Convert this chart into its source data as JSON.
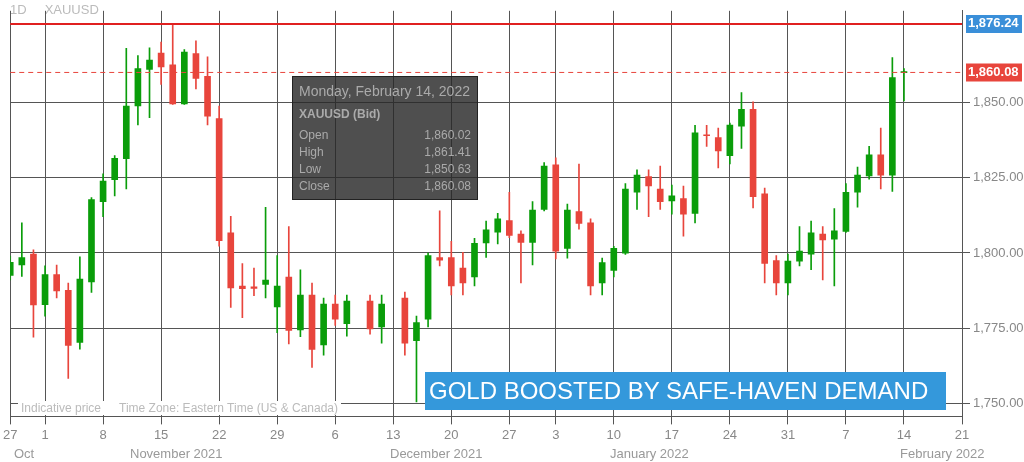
{
  "chart_data": {
    "type": "candlestick",
    "title": "GOLD BOOSTED BY SAFE-HAVEN DEMAND",
    "categories": [
      "27",
      null,
      null,
      "1",
      null,
      null,
      null,
      null,
      "8",
      null,
      null,
      null,
      null,
      "15",
      null,
      null,
      null,
      null,
      "22",
      null,
      null,
      null,
      null,
      "29",
      null,
      null,
      null,
      null,
      "6",
      null,
      null,
      null,
      null,
      "13",
      null,
      null,
      null,
      null,
      "20",
      null,
      null,
      null,
      null,
      "27",
      null,
      null,
      null,
      "3",
      null,
      null,
      null,
      null,
      "10",
      null,
      null,
      null,
      null,
      "17",
      null,
      null,
      null,
      null,
      "24",
      null,
      null,
      null,
      null,
      "31",
      null,
      null,
      null,
      null,
      "7",
      null,
      null,
      null,
      null,
      "14",
      null,
      null,
      null,
      null,
      "21"
    ],
    "ohlc": [
      [
        1792.5,
        1799,
        1791,
        1796.9
      ],
      [
        1796,
        1810,
        1792.2,
        1798.5
      ],
      [
        1799.6,
        1801,
        1772,
        1782.7
      ],
      [
        1782.8,
        1795.7,
        1779,
        1792.8
      ],
      [
        1792.8,
        1796,
        1785,
        1787.4
      ],
      [
        1787.6,
        1790,
        1758.2,
        1769.2
      ],
      [
        1770.2,
        1798.7,
        1768,
        1791.3
      ],
      [
        1790.4,
        1818.4,
        1786.9,
        1817.8
      ],
      [
        1817.1,
        1826.3,
        1812.1,
        1823.9
      ],
      [
        1824.4,
        1832.4,
        1819,
        1831.5
      ],
      [
        1831.4,
        1868.1,
        1821.3,
        1848.9
      ],
      [
        1848.9,
        1865.7,
        1842.6,
        1861.4
      ],
      [
        1861.1,
        1868.3,
        1845,
        1864.2
      ],
      [
        1866.5,
        1870.2,
        1856.1,
        1861.9
      ],
      [
        1862.6,
        1876.2,
        1849.4,
        1849.6
      ],
      [
        1849.6,
        1867.7,
        1849.4,
        1866.9
      ],
      [
        1866.4,
        1870.6,
        1854.6,
        1858.1
      ],
      [
        1858.8,
        1865.3,
        1842.6,
        1845.5
      ],
      [
        1844.7,
        1848.9,
        1802.3,
        1804.1
      ],
      [
        1806.7,
        1812.2,
        1781.9,
        1788.4
      ],
      [
        1789,
        1796.5,
        1778.5,
        1788.1
      ],
      [
        1788.7,
        1795,
        1785.8,
        1788.2
      ],
      [
        1789.5,
        1815.2,
        1785,
        1791
      ],
      [
        1782,
        1799.1,
        1773.5,
        1789
      ],
      [
        1792,
        1808.8,
        1769.7,
        1774.2
      ],
      [
        1774.4,
        1794.4,
        1772.1,
        1786
      ],
      [
        1786,
        1790,
        1761.9,
        1767.9
      ],
      [
        1769.4,
        1785,
        1766,
        1783
      ],
      [
        1783,
        1786,
        1775.9,
        1778
      ],
      [
        1776.5,
        1786,
        1772.3,
        1784
      ],
      null,
      [
        1784,
        1786,
        1773,
        1774.7
      ],
      [
        1775.4,
        1786,
        1770,
        1783
      ],
      null,
      [
        1785,
        1787,
        1766,
        1770
      ],
      [
        1770.8,
        1779,
        1750.4,
        1776.8
      ],
      [
        1778,
        1800,
        1775.4,
        1799.1
      ],
      [
        1798.5,
        1814,
        1795.7,
        1797.6
      ],
      [
        1798.5,
        1803.9,
        1786,
        1789
      ],
      [
        1795,
        1800.2,
        1786,
        1790
      ],
      [
        1792,
        1804.9,
        1789,
        1803.2
      ],
      [
        1803.3,
        1810.6,
        1798.5,
        1807.7
      ],
      [
        1806.9,
        1813.2,
        1803,
        1811.4
      ],
      [
        1810.8,
        1820.2,
        1805.1,
        1805.8
      ],
      [
        1806.3,
        1807.4,
        1790,
        1803.5
      ],
      [
        1803.5,
        1817.1,
        1796,
        1814.3
      ],
      [
        1814.5,
        1830.1,
        1814,
        1828.9
      ],
      [
        1829.3,
        1831.7,
        1798,
        1800.6
      ],
      [
        1801.5,
        1816.3,
        1798.3,
        1814.3
      ],
      [
        1813.8,
        1829.6,
        1807.9,
        1809.8
      ],
      [
        1810,
        1811.4,
        1786,
        1789
      ],
      [
        1790,
        1798.3,
        1786,
        1796.8
      ],
      [
        1794.2,
        1802.2,
        1792,
        1801.5
      ],
      [
        1799.9,
        1823.1,
        1799.5,
        1821.3
      ],
      [
        1820.2,
        1827.7,
        1814.5,
        1825.9
      ],
      [
        1825.4,
        1827.7,
        1812.1,
        1822.3
      ],
      [
        1821.3,
        1828.9,
        1814.5,
        1817.1
      ],
      [
        1817.3,
        1822.6,
        1812.9,
        1819
      ],
      [
        1818.1,
        1822.3,
        1805.6,
        1812.9
      ],
      [
        1813.2,
        1842.5,
        1810,
        1840
      ],
      [
        1839.3,
        1842.5,
        1835.5,
        1839
      ],
      [
        1838.4,
        1841.6,
        1828.3,
        1834
      ],
      [
        1832.4,
        1843.2,
        1829.6,
        1842.6
      ],
      [
        1842.2,
        1853.4,
        1834.8,
        1847.8
      ],
      [
        1847.8,
        1850.3,
        1815,
        1818.7
      ],
      [
        1819.7,
        1821.6,
        1790,
        1796.5
      ],
      [
        1797.5,
        1799.1,
        1786,
        1790
      ],
      [
        1790,
        1799.6,
        1786,
        1797.3
      ],
      [
        1797.3,
        1808.8,
        1795.7,
        1800.6
      ],
      [
        1799.6,
        1810.6,
        1794.4,
        1806.7
      ],
      [
        1806.3,
        1808.8,
        1791,
        1804.3
      ],
      [
        1804.6,
        1814.8,
        1789,
        1807.4
      ],
      [
        1807.2,
        1823.1,
        1806.8,
        1820.2
      ],
      [
        1820.2,
        1828.6,
        1815.2,
        1825.9
      ],
      [
        1825.6,
        1835.5,
        1824.6,
        1832.7
      ],
      [
        1832.7,
        1841.6,
        1821.3,
        1825.9
      ],
      [
        1825.9,
        1865,
        1820.5,
        1858.4
      ],
      [
        1860.02,
        1861.41,
        1850.63,
        1860.08
      ],
      null,
      null,
      null,
      null,
      null
    ],
    "colors": [
      "#0a9d0a",
      "#0a9d0a",
      "#e8453c",
      "#0a9d0a",
      "#e8453c",
      "#e8453c",
      "#0a9d0a",
      "#0a9d0a",
      "#0a9d0a",
      "#0a9d0a",
      "#0a9d0a",
      "#0a9d0a",
      "#0a9d0a",
      "#e8453c",
      "#e8453c",
      "#0a9d0a",
      "#e8453c",
      "#e8453c",
      "#e8453c",
      "#e8453c",
      "#e8453c",
      "#e8453c",
      "#0a9d0a",
      "#0a9d0a",
      "#e8453c",
      "#0a9d0a",
      "#e8453c",
      "#0a9d0a",
      "#e8453c",
      "#0a9d0a",
      null,
      "#e8453c",
      "#0a9d0a",
      null,
      "#e8453c",
      "#0a9d0a",
      "#0a9d0a",
      "#e8453c",
      "#e8453c",
      "#e8453c",
      "#0a9d0a",
      "#0a9d0a",
      "#0a9d0a",
      "#e8453c",
      "#e8453c",
      "#0a9d0a",
      "#0a9d0a",
      "#e8453c",
      "#0a9d0a",
      "#e8453c",
      "#e8453c",
      "#0a9d0a",
      "#0a9d0a",
      "#0a9d0a",
      "#0a9d0a",
      "#e8453c",
      "#e8453c",
      "#0a9d0a",
      "#e8453c",
      "#0a9d0a",
      "#e8453c",
      "#e8453c",
      "#0a9d0a",
      "#0a9d0a",
      "#e8453c",
      "#e8453c",
      "#e8453c",
      "#0a9d0a",
      "#0a9d0a",
      "#0a9d0a",
      "#e8453c",
      "#0a9d0a",
      "#0a9d0a",
      "#0a9d0a",
      "#0a9d0a",
      "#e8453c",
      "#0a9d0a",
      "#0a9d0a",
      null,
      null,
      null,
      null,
      null
    ],
    "ylim": [
      1745.6,
      1880.6
    ],
    "yticks": [
      {
        "value": 1750,
        "label": "1,750.00"
      },
      {
        "value": 1775,
        "label": "1,775.00"
      },
      {
        "value": 1800,
        "label": "1,800.00"
      },
      {
        "value": 1825,
        "label": "1,825.00"
      },
      {
        "value": 1850,
        "label": "1,850.00"
      }
    ],
    "ref_lines": [
      {
        "axis": "y",
        "value": 1876.24,
        "label": "1,876.24",
        "color": "#e02020",
        "line_style": "solid"
      },
      {
        "axis": "y",
        "value": 1860.08,
        "label": "1,860.08",
        "color": "#e8453c",
        "line_style": "dashed"
      }
    ],
    "grid": true,
    "annotations": [
      "1D",
      "XAUUSD",
      "Monday, February 14, 2022",
      "XAUUSD (Bid)",
      "Open",
      "1,860.02",
      "High",
      "1,861.41",
      "Low",
      "1,850.63",
      "Close",
      "1,860.08",
      "Indicative price",
      "Time Zone: Eastern Time (US & Canada)",
      "Oct",
      "November 2021",
      "December 2021",
      "January 2022",
      "February 2022"
    ]
  }
}
